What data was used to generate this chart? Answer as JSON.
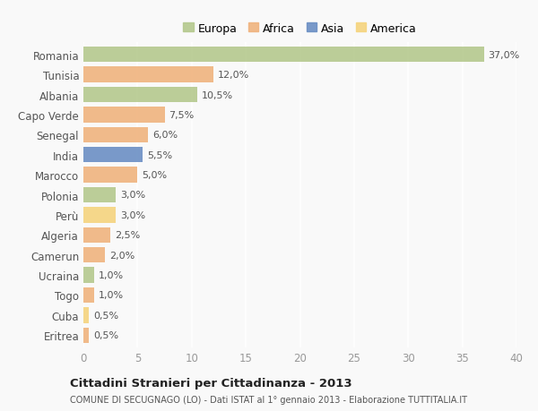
{
  "countries": [
    "Romania",
    "Tunisia",
    "Albania",
    "Capo Verde",
    "Senegal",
    "India",
    "Marocco",
    "Polonia",
    "Perù",
    "Algeria",
    "Camerun",
    "Ucraina",
    "Togo",
    "Cuba",
    "Eritrea"
  ],
  "values": [
    37.0,
    12.0,
    10.5,
    7.5,
    6.0,
    5.5,
    5.0,
    3.0,
    3.0,
    2.5,
    2.0,
    1.0,
    1.0,
    0.5,
    0.5
  ],
  "labels": [
    "37,0%",
    "12,0%",
    "10,5%",
    "7,5%",
    "6,0%",
    "5,5%",
    "5,0%",
    "3,0%",
    "3,0%",
    "2,5%",
    "2,0%",
    "1,0%",
    "1,0%",
    "0,5%",
    "0,5%"
  ],
  "colors": [
    "#b5c98e",
    "#f0b37e",
    "#b5c98e",
    "#f0b37e",
    "#f0b37e",
    "#6b8fc4",
    "#f0b37e",
    "#b5c98e",
    "#f5d47e",
    "#f0b37e",
    "#f0b37e",
    "#b5c98e",
    "#f0b37e",
    "#f5d47e",
    "#f0b37e"
  ],
  "legend": [
    {
      "label": "Europa",
      "color": "#b5c98e"
    },
    {
      "label": "Africa",
      "color": "#f0b37e"
    },
    {
      "label": "Asia",
      "color": "#6b8fc4"
    },
    {
      "label": "America",
      "color": "#f5d47e"
    }
  ],
  "xlim": [
    0,
    40
  ],
  "xticks": [
    0,
    5,
    10,
    15,
    20,
    25,
    30,
    35,
    40
  ],
  "title": "Cittadini Stranieri per Cittadinanza - 2013",
  "subtitle": "COMUNE DI SECUGNAGO (LO) - Dati ISTAT al 1° gennaio 2013 - Elaborazione TUTTITALIA.IT",
  "bg_color": "#f9f9f9",
  "grid_color": "#ffffff",
  "bar_height": 0.78,
  "label_fontsize": 8,
  "tick_fontsize": 8.5
}
